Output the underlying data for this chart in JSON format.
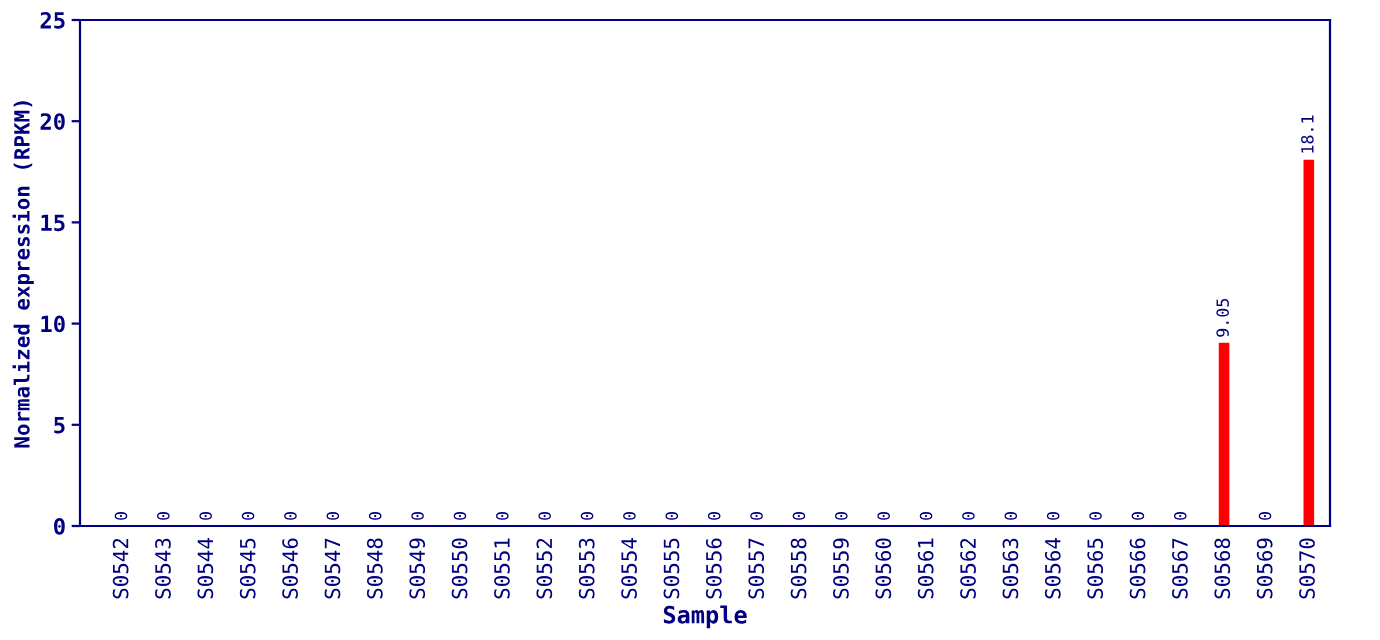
{
  "chart_data": {
    "type": "bar",
    "xlabel": "Sample",
    "ylabel": "Normalized expression (RPKM)",
    "categories": [
      "S0542",
      "S0543",
      "S0544",
      "S0545",
      "S0546",
      "S0547",
      "S0548",
      "S0549",
      "S0550",
      "S0551",
      "S0552",
      "S0553",
      "S0554",
      "S0555",
      "S0556",
      "S0557",
      "S0558",
      "S0559",
      "S0560",
      "S0561",
      "S0562",
      "S0563",
      "S0564",
      "S0565",
      "S0566",
      "S0567",
      "S0568",
      "S0569",
      "S0570"
    ],
    "values": [
      0,
      0,
      0,
      0,
      0,
      0,
      0,
      0,
      0,
      0,
      0,
      0,
      0,
      0,
      0,
      0,
      0,
      0,
      0,
      0,
      0,
      0,
      0,
      0,
      0,
      0,
      9.05,
      0,
      18.1
    ],
    "color": "#ff0000",
    "ylim": [
      0,
      25
    ],
    "yticks": [
      0,
      5,
      10,
      15,
      20,
      25
    ],
    "data_labels": true,
    "grid": false,
    "legend": false
  }
}
